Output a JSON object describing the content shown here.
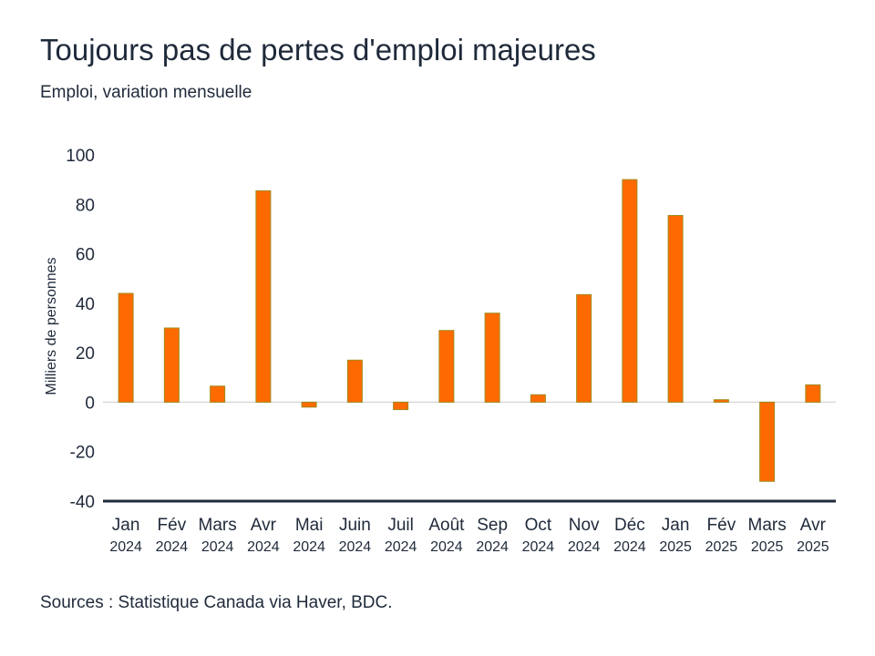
{
  "title": "Toujours pas de pertes d'emploi majeures",
  "subtitle": "Emploi, variation mensuelle",
  "source": "Sources : Statistique Canada via Haver, BDC.",
  "colors": {
    "bar": "#ff6a00",
    "bar_edge": "#a08a1a",
    "axis": "#1f2a3a",
    "zero_line": "#d9d9d9"
  },
  "chart_data": {
    "type": "bar",
    "ylabel": "Milliers de personnes",
    "ylim": [
      -40,
      100
    ],
    "yticks": [
      100,
      80,
      60,
      40,
      20,
      0,
      -20,
      -40
    ],
    "grid": false,
    "categories": [
      {
        "month": "Jan",
        "year": "2024"
      },
      {
        "month": "Fév",
        "year": "2024"
      },
      {
        "month": "Mars",
        "year": "2024"
      },
      {
        "month": "Avr",
        "year": "2024"
      },
      {
        "month": "Mai",
        "year": "2024"
      },
      {
        "month": "Juin",
        "year": "2024"
      },
      {
        "month": "Juil",
        "year": "2024"
      },
      {
        "month": "Août",
        "year": "2024"
      },
      {
        "month": "Sep",
        "year": "2024"
      },
      {
        "month": "Oct",
        "year": "2024"
      },
      {
        "month": "Nov",
        "year": "2024"
      },
      {
        "month": "Déc",
        "year": "2024"
      },
      {
        "month": "Jan",
        "year": "2025"
      },
      {
        "month": "Fév",
        "year": "2025"
      },
      {
        "month": "Mars",
        "year": "2025"
      },
      {
        "month": "Avr",
        "year": "2025"
      }
    ],
    "values": [
      44,
      30,
      6.5,
      85.5,
      -2,
      17,
      -3,
      29,
      36,
      3,
      43.5,
      90,
      75.5,
      1,
      -32,
      7
    ]
  }
}
